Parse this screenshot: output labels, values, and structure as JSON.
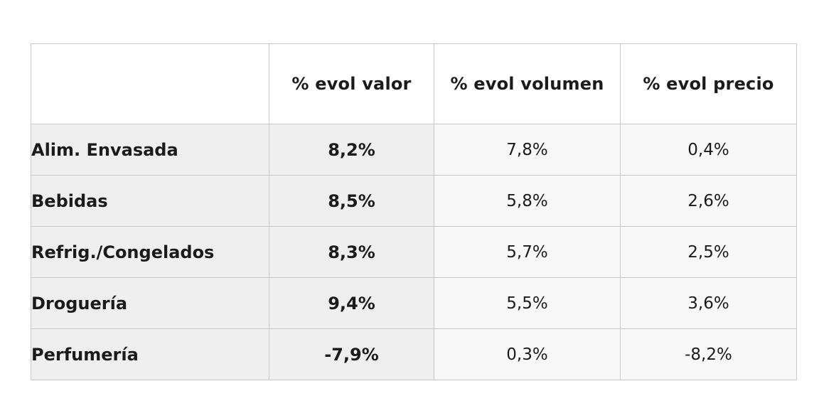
{
  "table": {
    "headers": [
      "",
      "% evol valor",
      "% evol volumen",
      "% evol precio"
    ],
    "rows": [
      {
        "label": "Alim. Envasada",
        "valor": "8,2%",
        "volumen": "7,8%",
        "precio": "0,4%"
      },
      {
        "label": "Bebidas",
        "valor": "8,5%",
        "volumen": "5,8%",
        "precio": "2,6%"
      },
      {
        "label": "Refrig./Congelados",
        "valor": "8,3%",
        "volumen": "5,7%",
        "precio": "2,5%"
      },
      {
        "label": "Droguería",
        "valor": "9,4%",
        "volumen": "5,5%",
        "precio": "3,6%"
      },
      {
        "label": "Perfumería",
        "valor": "-7,9%",
        "volumen": "0,3%",
        "precio": "-8,2%"
      }
    ]
  },
  "colors": {
    "border": "#c9c9c9",
    "row_background": "#efefef",
    "text": "#1b1b1b"
  }
}
